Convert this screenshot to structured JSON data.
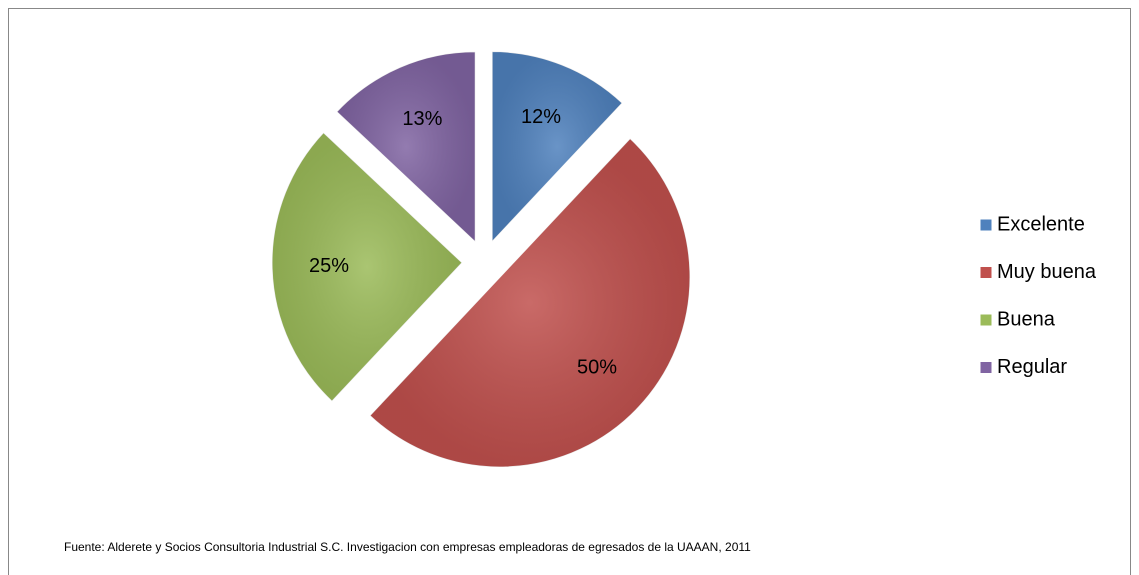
{
  "chart_data": {
    "type": "pie",
    "categories": [
      "Excelente",
      "Muy buena",
      "Buena",
      "Regular"
    ],
    "values": [
      12,
      50,
      25,
      13
    ],
    "value_labels": [
      "12%",
      "50%",
      "25%",
      "13%"
    ],
    "colors": [
      "#4f81bd",
      "#c0504d",
      "#9bbb59",
      "#8064a2"
    ],
    "legend": "right",
    "source": "Fuente: Alderete y Socios Consultoria Industrial S.C. Investigacion con empresas empleadoras de  egresados de la UAAAN,  2011"
  }
}
